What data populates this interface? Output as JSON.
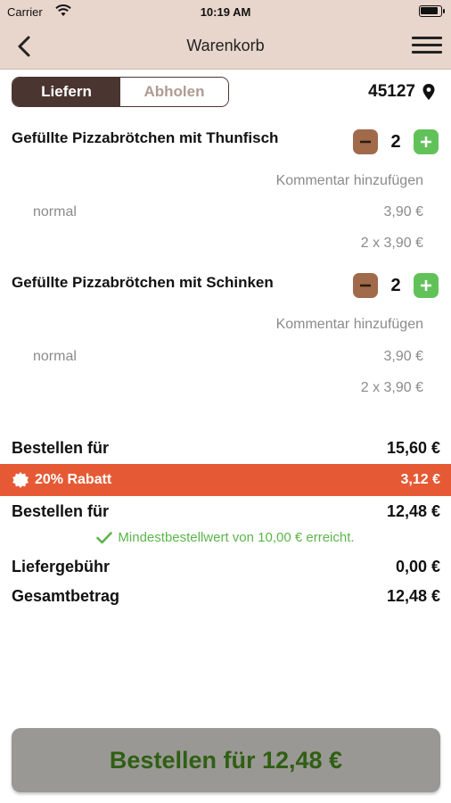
{
  "status_bar": {
    "carrier": "Carrier",
    "time": "10:19 AM"
  },
  "nav": {
    "title": "Warenkorb"
  },
  "delivery_toggle": {
    "options": [
      "Liefern",
      "Abholen"
    ],
    "selected": "Liefern"
  },
  "postal_code": "45127",
  "items": [
    {
      "name": "Gefüllte Pizzabrötchen mit Thunfisch",
      "quantity": "2",
      "comment_link": "Kommentar hinzufügen",
      "variant": "normal",
      "unit_price": "3,90 €",
      "line_total": "2 x 3,90 €"
    },
    {
      "name": "Gefüllte Pizzabrötchen mit Schinken",
      "quantity": "2",
      "comment_link": "Kommentar hinzufügen",
      "variant": "normal",
      "unit_price": "3,90 €",
      "line_total": "2 x 3,90 €"
    }
  ],
  "summary": {
    "subtotal_label": "Bestellen für",
    "subtotal_value": "15,60 €",
    "discount_label": "20% Rabatt",
    "discount_value": "3,12 €",
    "after_discount_label": "Bestellen für",
    "after_discount_value": "12,48 €",
    "min_order_note": "Mindestbestellwert von 10,00 € erreicht.",
    "delivery_fee_label": "Liefergebühr",
    "delivery_fee_value": "0,00 €",
    "total_label": "Gesamtbetrag",
    "total_value": "12,48 €"
  },
  "order_button": "Bestellen für 12,48 €",
  "colors": {
    "header_bg": "#e8d5cb",
    "toggle_active": "#4a3530",
    "minus_btn": "#a06a4b",
    "plus_btn": "#62c25a",
    "discount_bar": "#e55a35",
    "success_text": "#5cb54a",
    "order_button_bg": "#9a9894",
    "order_button_text": "#2f5f14"
  }
}
